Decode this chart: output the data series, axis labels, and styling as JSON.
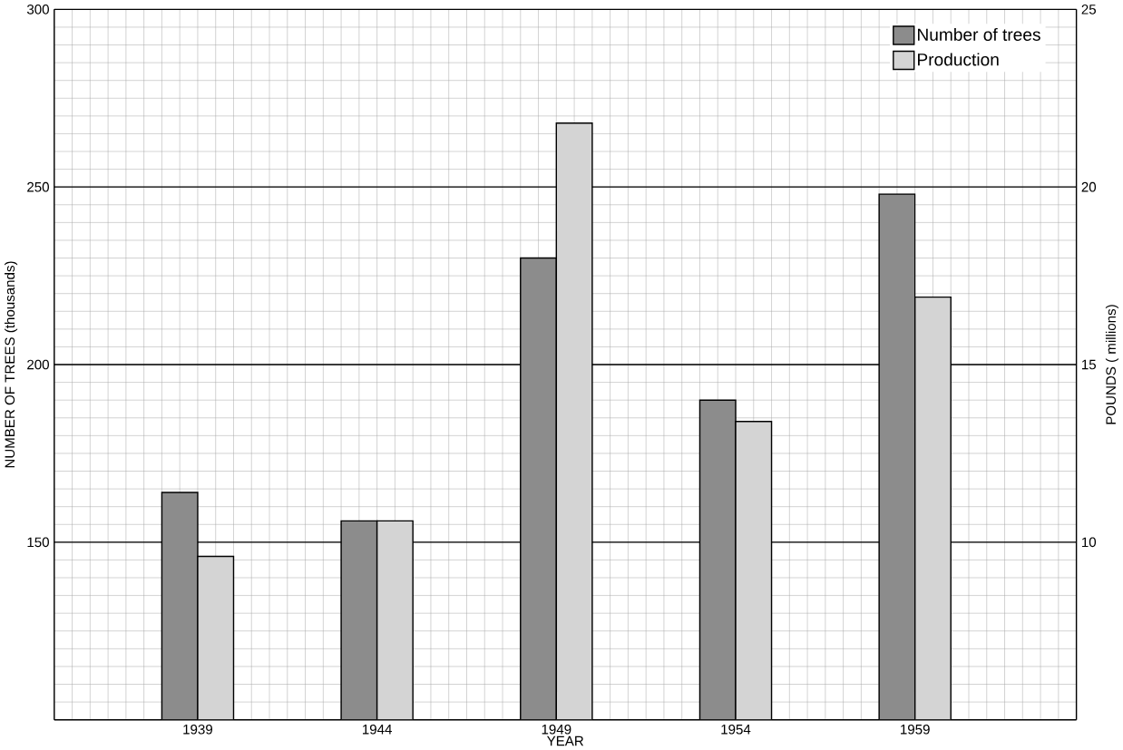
{
  "chart_data": {
    "type": "bar",
    "categories": [
      "1939",
      "1944",
      "1949",
      "1954",
      "1959"
    ],
    "series": [
      {
        "name": "Number of trees",
        "color": "#8c8c8c",
        "values": [
          164,
          156,
          230,
          190,
          248
        ]
      },
      {
        "name": "Production",
        "color": "#d4d4d4",
        "axis": "y2",
        "values": [
          9.6,
          10.6,
          21.8,
          13.4,
          16.9
        ]
      }
    ],
    "xlabel": "YEAR",
    "ylabel": "NUMBER OF TREES (thousands)",
    "y2label": "POUNDS ( millions)",
    "ylim": [
      100,
      300
    ],
    "yticks": [
      150,
      200,
      250,
      300
    ],
    "y2lim": [
      5,
      25
    ],
    "y2ticks": [
      10,
      15,
      20,
      25
    ],
    "grid": true,
    "legend": "top right"
  }
}
